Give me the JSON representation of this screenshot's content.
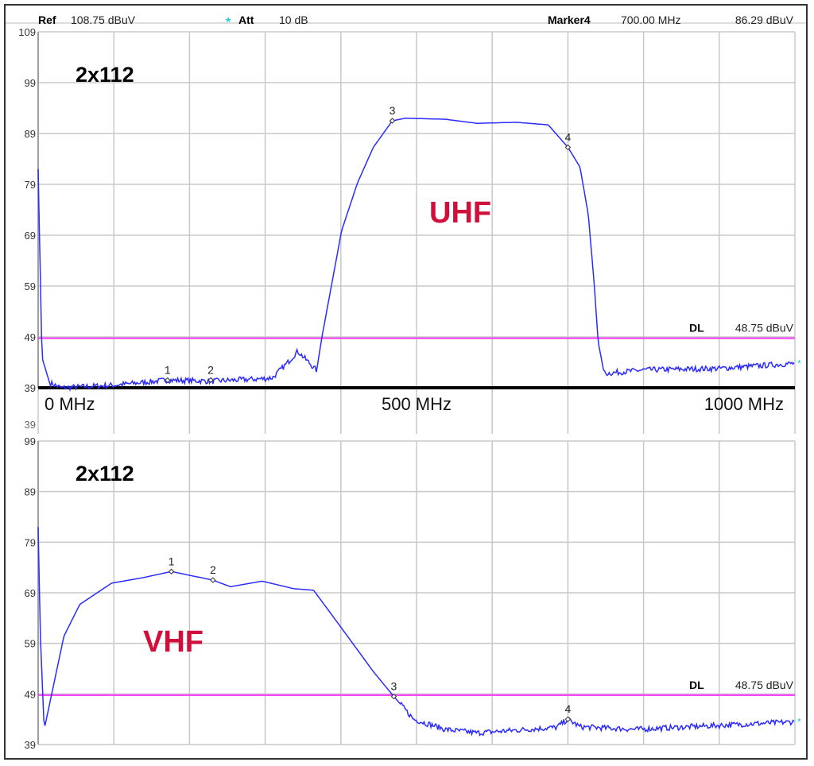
{
  "header": {
    "ref_label": "Ref",
    "ref_value": "108.75 dBuV",
    "att_star": "*",
    "att_label": "Att",
    "att_value": "10 dB",
    "marker_label": "Marker4",
    "marker_freq": "700.00 MHz",
    "marker_level": "86.29 dBuV"
  },
  "colors": {
    "trace": "#2b2bff",
    "display_line": "#ff33ff",
    "grid": "#c8c8c8",
    "band_label": "#d0103a",
    "att_star": "#22cccc"
  },
  "chart_data": [
    {
      "type": "line",
      "title": "2x112",
      "band_label": "UHF",
      "xlim": [
        0,
        1000
      ],
      "x_unit": "MHz",
      "ylim": [
        39,
        109
      ],
      "y_unit": "dBuV",
      "yticks": [
        "109",
        "99",
        "89",
        "79",
        "69",
        "59",
        "49",
        "39"
      ],
      "xtick_labels": [
        {
          "x": 0,
          "label": "0 MHz"
        },
        {
          "x": 500,
          "label": "500 MHz"
        },
        {
          "x": 1000,
          "label": "1000 MHz"
        }
      ],
      "grid": true,
      "display_line": {
        "value": 48.75,
        "label_bold": "DL",
        "label": "48.75 dBuV"
      },
      "x": [
        0,
        5,
        15,
        30,
        100,
        170,
        230,
        300,
        310,
        330,
        343,
        368,
        375,
        401,
        422,
        443,
        468,
        485,
        538,
        580,
        632,
        674,
        700,
        716,
        727,
        735,
        740,
        748,
        800,
        900,
        1000
      ],
      "y": [
        82,
        45,
        40,
        39,
        39.5,
        40.5,
        40.3,
        40.8,
        41,
        44,
        46.2,
        42.4,
        49,
        69.9,
        79.3,
        86.3,
        91.5,
        92,
        91.8,
        91,
        91.2,
        90.7,
        86.29,
        82.4,
        73,
        59,
        48,
        41.8,
        42.5,
        42.8,
        43.8
      ],
      "noisy": true,
      "markers": [
        {
          "label": "1",
          "x": 171,
          "y": 40.5
        },
        {
          "label": "2",
          "x": 228,
          "y": 40.5
        },
        {
          "label": "3",
          "x": 468,
          "y": 91.5
        },
        {
          "label": "4",
          "x": 700,
          "y": 86.29
        }
      ]
    },
    {
      "type": "line",
      "title": "2x112",
      "band_label": "VHF",
      "xlim": [
        0,
        1000
      ],
      "x_unit": "MHz",
      "ylim": [
        39,
        99
      ],
      "y_unit": "dBuV",
      "yticks": [
        "99",
        "89",
        "79",
        "69",
        "59",
        "49",
        "39"
      ],
      "extra_tick": "39",
      "grid": true,
      "display_line": {
        "value": 48.75,
        "label_bold": "DL",
        "label": "48.75 dBuV"
      },
      "x": [
        0,
        3,
        8,
        23,
        34,
        55,
        97,
        139,
        176,
        231,
        254,
        296,
        338,
        364,
        401,
        443,
        470,
        496,
        538,
        580,
        685,
        700,
        716,
        790,
        1000
      ],
      "y": [
        82,
        60,
        42,
        52.6,
        60.4,
        66.7,
        70.9,
        72,
        73.2,
        71.5,
        70.2,
        71.3,
        69.8,
        69.5,
        62,
        53.4,
        48.5,
        44,
        42,
        41.3,
        42.4,
        44,
        42.5,
        42,
        43.5
      ],
      "noisy": true,
      "markers": [
        {
          "label": "1",
          "x": 176,
          "y": 73.2
        },
        {
          "label": "2",
          "x": 231,
          "y": 71.5
        },
        {
          "label": "3",
          "x": 470,
          "y": 48.5
        },
        {
          "label": "4",
          "x": 700,
          "y": 44
        }
      ]
    }
  ]
}
